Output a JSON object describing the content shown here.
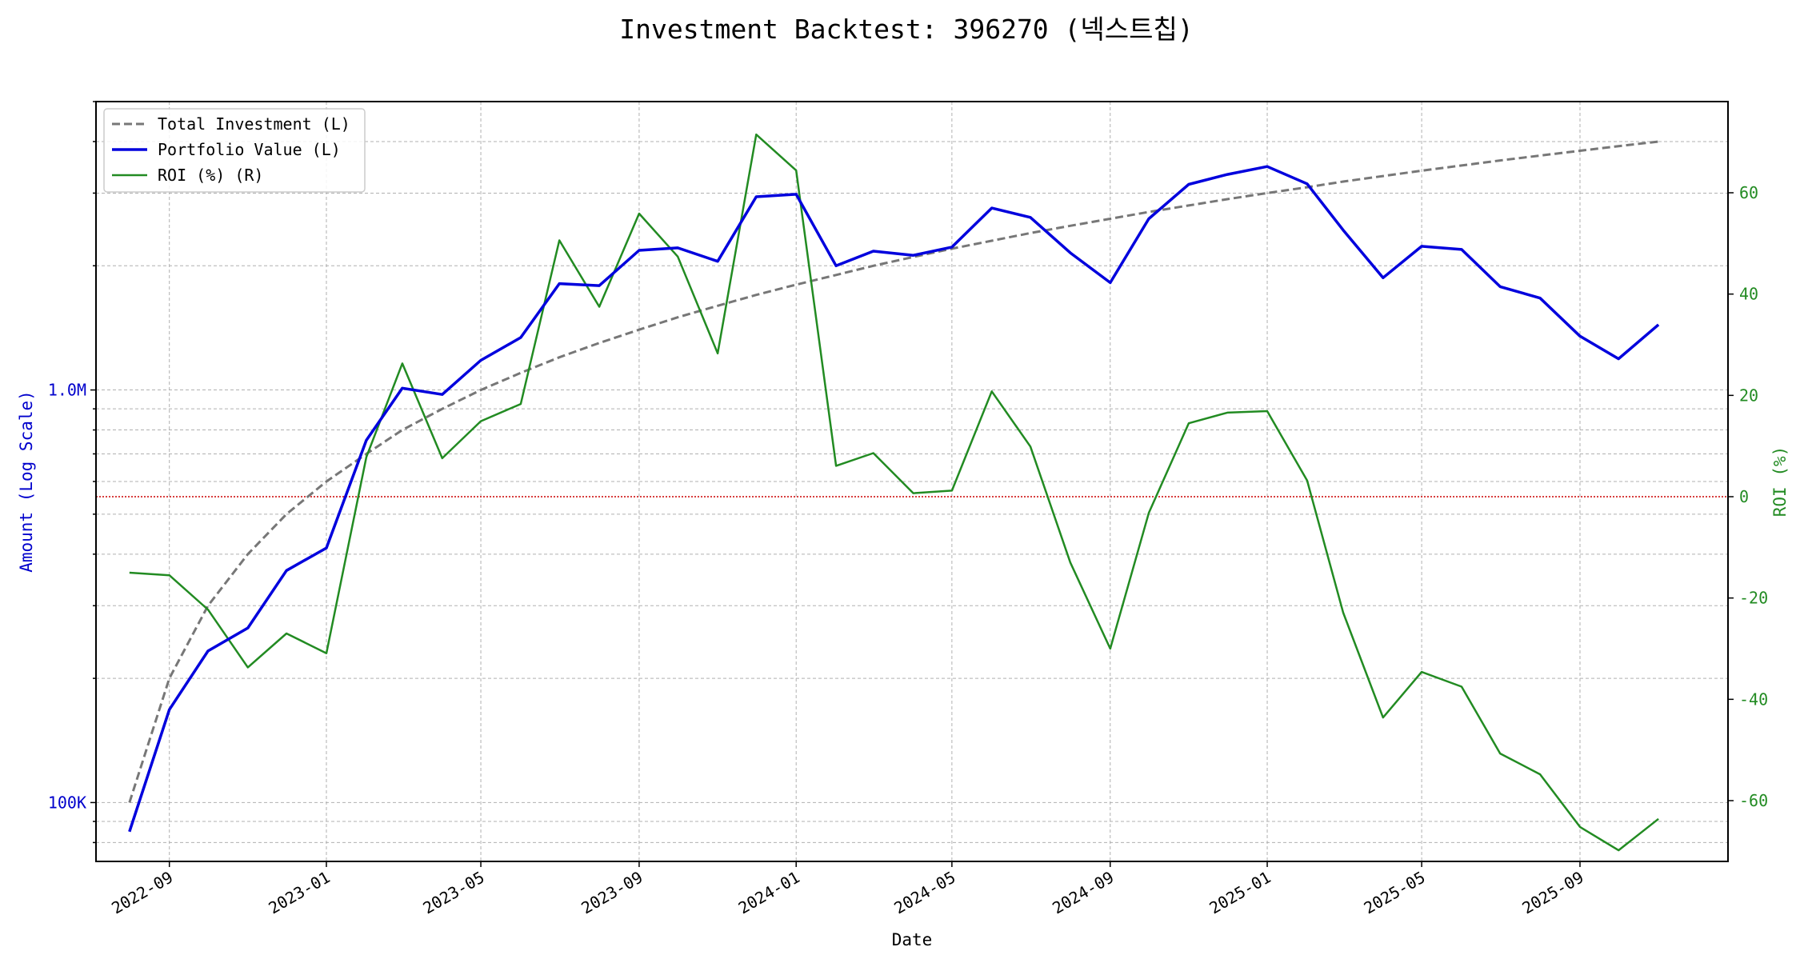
{
  "chart_data": {
    "type": "line",
    "title": "Investment Backtest: 396270 (넥스트칩)",
    "xlabel": "Date",
    "ylabel_left": "Amount (Log Scale)",
    "ylabel_right": "ROI (%)",
    "left_axis": {
      "scale": "log",
      "ylim": [
        72000,
        5000000
      ],
      "ticks": [
        100000,
        1000000
      ],
      "tick_labels": [
        "100K",
        "1.0M"
      ]
    },
    "right_axis": {
      "scale": "linear",
      "ylim": [
        -72,
        78
      ],
      "ticks": [
        -60,
        -40,
        -20,
        0,
        20,
        40,
        60
      ],
      "tick_labels": [
        "-60",
        "-40",
        "-20",
        "0",
        "20",
        "40",
        "60"
      ]
    },
    "x_range": [
      "2022-07-06",
      "2025-12-25"
    ],
    "x_ticks": [
      "2022-09-01",
      "2023-01-01",
      "2023-05-01",
      "2023-09-01",
      "2024-01-01",
      "2024-05-01",
      "2024-09-01",
      "2025-01-01",
      "2025-05-01",
      "2025-09-01"
    ],
    "x_tick_labels": [
      "2022-09",
      "2023-01",
      "2023-05",
      "2023-09",
      "2024-01",
      "2024-05",
      "2024-09",
      "2025-01",
      "2025-05",
      "2025-09"
    ],
    "grid": true,
    "legend_position": "top-left",
    "reference_line": {
      "axis": "right",
      "value": 0,
      "color": "#cc0000",
      "style": "dotted"
    },
    "series": [
      {
        "name": "Total Investment (L)",
        "axis": "left",
        "color": "#777777",
        "style": "dashed",
        "x": [
          "2022-08-01",
          "2022-09-01",
          "2022-10-01",
          "2022-11-01",
          "2022-12-01",
          "2023-01-01",
          "2023-02-01",
          "2023-03-01",
          "2023-04-01",
          "2023-05-01",
          "2023-06-01",
          "2023-07-01",
          "2023-08-01",
          "2023-09-01",
          "2023-10-01",
          "2023-11-01",
          "2023-12-01",
          "2024-01-01",
          "2024-02-01",
          "2024-03-01",
          "2024-04-01",
          "2024-05-01",
          "2024-06-01",
          "2024-07-01",
          "2024-08-01",
          "2024-09-01",
          "2024-10-01",
          "2024-11-01",
          "2024-12-01",
          "2025-01-01",
          "2025-02-01",
          "2025-03-01",
          "2025-04-01",
          "2025-05-01",
          "2025-06-01",
          "2025-07-01",
          "2025-08-01",
          "2025-09-01",
          "2025-10-01",
          "2025-11-01"
        ],
        "values": [
          100000,
          200000,
          300000,
          400000,
          500000,
          600000,
          700000,
          800000,
          900000,
          1000000,
          1100000,
          1200000,
          1300000,
          1400000,
          1500000,
          1600000,
          1700000,
          1800000,
          1900000,
          2000000,
          2100000,
          2200000,
          2300000,
          2400000,
          2500000,
          2600000,
          2700000,
          2800000,
          2900000,
          3000000,
          3100000,
          3200000,
          3300000,
          3400000,
          3500000,
          3600000,
          3700000,
          3800000,
          3900000,
          4000000
        ]
      },
      {
        "name": "Portfolio Value (L)",
        "axis": "left",
        "color": "#0000dd",
        "style": "solid",
        "x": [
          "2022-08-01",
          "2022-09-01",
          "2022-10-01",
          "2022-11-01",
          "2022-12-01",
          "2023-01-01",
          "2023-02-01",
          "2023-03-01",
          "2023-04-01",
          "2023-05-01",
          "2023-06-01",
          "2023-07-01",
          "2023-08-01",
          "2023-09-01",
          "2023-10-01",
          "2023-11-01",
          "2023-12-01",
          "2024-01-01",
          "2024-02-01",
          "2024-03-01",
          "2024-04-01",
          "2024-05-01",
          "2024-06-01",
          "2024-07-01",
          "2024-08-01",
          "2024-09-01",
          "2024-10-01",
          "2024-11-01",
          "2024-12-01",
          "2025-01-01",
          "2025-02-01",
          "2025-03-01",
          "2025-04-01",
          "2025-05-01",
          "2025-06-01",
          "2025-07-01",
          "2025-08-01",
          "2025-09-01",
          "2025-10-01",
          "2025-11-01"
        ],
        "values": [
          85000,
          168000,
          233000,
          265000,
          365000,
          414000,
          755000,
          1010000,
          975000,
          1180000,
          1340000,
          1810000,
          1790000,
          2180000,
          2210000,
          2050000,
          2940000,
          2980000,
          2000000,
          2170000,
          2120000,
          2220000,
          2760000,
          2620000,
          2150000,
          1820000,
          2600000,
          3150000,
          3330000,
          3480000,
          3160000,
          2440000,
          1870000,
          2230000,
          2190000,
          1780000,
          1670000,
          1350000,
          1190000,
          1440000
        ]
      },
      {
        "name": "ROI (%) (R)",
        "axis": "right",
        "color": "#228b22",
        "style": "solid",
        "x": [
          "2022-08-01",
          "2022-09-01",
          "2022-10-01",
          "2022-11-01",
          "2022-12-01",
          "2023-01-01",
          "2023-02-01",
          "2023-03-01",
          "2023-04-01",
          "2023-05-01",
          "2023-06-01",
          "2023-07-01",
          "2023-08-01",
          "2023-09-01",
          "2023-10-01",
          "2023-11-01",
          "2023-12-01",
          "2024-01-01",
          "2024-02-01",
          "2024-03-01",
          "2024-04-01",
          "2024-05-01",
          "2024-06-01",
          "2024-07-01",
          "2024-08-01",
          "2024-09-01",
          "2024-10-01",
          "2024-11-01",
          "2024-12-01",
          "2025-01-01",
          "2025-02-01",
          "2025-03-01",
          "2025-04-01",
          "2025-05-01",
          "2025-06-01",
          "2025-07-01",
          "2025-08-01",
          "2025-09-01",
          "2025-10-01",
          "2025-11-01"
        ],
        "values": [
          -15.0,
          -15.5,
          -22.3,
          -33.7,
          -27.0,
          -30.9,
          7.8,
          26.3,
          7.6,
          14.9,
          18.3,
          50.6,
          37.5,
          55.9,
          47.4,
          28.3,
          71.5,
          64.4,
          6.1,
          8.6,
          0.7,
          1.2,
          20.8,
          9.9,
          -13.0,
          -30.0,
          -3.2,
          14.5,
          16.6,
          16.9,
          3.2,
          -22.9,
          -43.6,
          -34.6,
          -37.5,
          -50.7,
          -54.8,
          -65.2,
          -69.8,
          -63.6
        ]
      }
    ]
  }
}
